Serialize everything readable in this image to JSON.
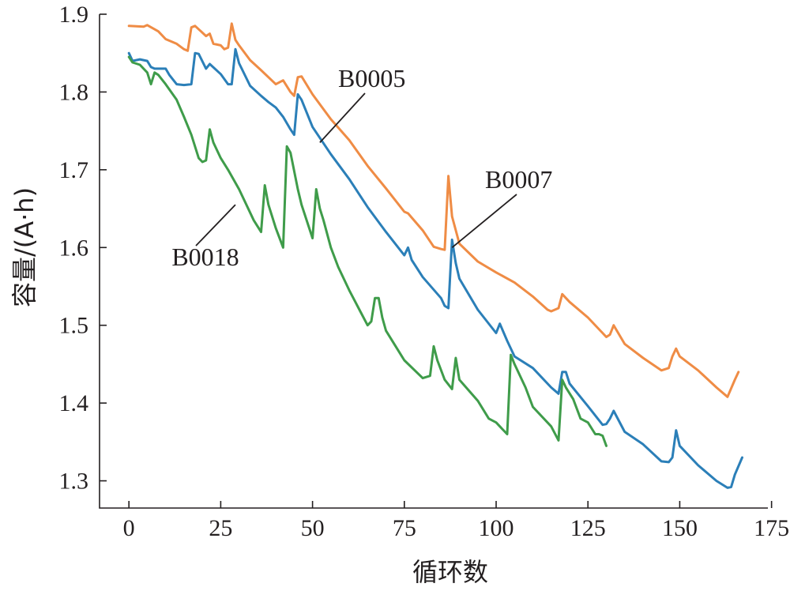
{
  "chart_data": {
    "type": "line",
    "xlabel": "循环数",
    "ylabel": "容量/(A·h)",
    "xlim": [
      -8,
      174
    ],
    "ylim": [
      1.265,
      1.9
    ],
    "xticks": [
      0,
      25,
      50,
      75,
      100,
      125,
      150,
      175
    ],
    "xtick_labels": [
      "0",
      "25",
      "50",
      "75",
      "100",
      "125",
      "150",
      "175"
    ],
    "yticks": [
      1.3,
      1.4,
      1.5,
      1.6,
      1.7,
      1.8,
      1.9
    ],
    "ytick_labels": [
      "1.3",
      "1.4",
      "1.5",
      "1.6",
      "1.7",
      "1.8",
      "1.9"
    ],
    "legend": "inline labels",
    "series": [
      {
        "name": "B0007",
        "color": "#ef8c45",
        "label_anchor": [
          88,
          1.6
        ],
        "x": [
          0,
          4,
          5,
          8,
          10,
          13,
          15,
          16,
          17,
          18,
          21,
          22,
          23,
          25,
          26,
          27,
          28,
          29,
          30,
          33,
          36,
          40,
          42,
          44,
          45,
          46,
          47,
          50,
          55,
          60,
          65,
          70,
          75,
          76,
          80,
          83,
          85,
          86,
          87,
          88,
          90,
          95,
          100,
          105,
          110,
          114,
          115,
          117,
          118,
          120,
          125,
          130,
          131,
          132,
          135,
          140,
          145,
          147,
          148,
          149,
          150,
          155,
          160,
          163,
          165,
          166
        ],
        "values": [
          1.885,
          1.884,
          1.886,
          1.878,
          1.868,
          1.862,
          1.855,
          1.853,
          1.883,
          1.885,
          1.872,
          1.875,
          1.862,
          1.86,
          1.855,
          1.857,
          1.888,
          1.867,
          1.86,
          1.841,
          1.828,
          1.81,
          1.815,
          1.8,
          1.795,
          1.819,
          1.82,
          1.797,
          1.765,
          1.738,
          1.705,
          1.676,
          1.646,
          1.644,
          1.622,
          1.601,
          1.598,
          1.597,
          1.692,
          1.64,
          1.605,
          1.582,
          1.568,
          1.555,
          1.537,
          1.52,
          1.518,
          1.522,
          1.54,
          1.53,
          1.51,
          1.485,
          1.488,
          1.5,
          1.476,
          1.458,
          1.442,
          1.445,
          1.46,
          1.47,
          1.46,
          1.442,
          1.42,
          1.408,
          1.43,
          1.44
        ]
      },
      {
        "name": "B0005",
        "color": "#2b7fb8",
        "label_anchor": [
          52,
          1.735
        ],
        "x": [
          0,
          1,
          3,
          5,
          6,
          7,
          10,
          11,
          13,
          15,
          17,
          18,
          19,
          21,
          22,
          25,
          27,
          28,
          29,
          30,
          33,
          36,
          38,
          40,
          42,
          44,
          45,
          46,
          47,
          50,
          55,
          60,
          65,
          70,
          75,
          76,
          77,
          80,
          85,
          86,
          87,
          88,
          89,
          90,
          95,
          100,
          101,
          103,
          105,
          110,
          115,
          117,
          118,
          119,
          120,
          125,
          129,
          130,
          131,
          132,
          135,
          140,
          145,
          147,
          148,
          149,
          150,
          155,
          160,
          163,
          164,
          165,
          167
        ],
        "values": [
          1.85,
          1.84,
          1.842,
          1.84,
          1.832,
          1.83,
          1.83,
          1.822,
          1.81,
          1.809,
          1.81,
          1.85,
          1.849,
          1.83,
          1.836,
          1.823,
          1.81,
          1.81,
          1.855,
          1.837,
          1.808,
          1.795,
          1.787,
          1.78,
          1.768,
          1.752,
          1.745,
          1.797,
          1.79,
          1.755,
          1.72,
          1.688,
          1.652,
          1.62,
          1.59,
          1.6,
          1.584,
          1.562,
          1.535,
          1.525,
          1.522,
          1.61,
          1.58,
          1.56,
          1.52,
          1.49,
          1.502,
          1.48,
          1.46,
          1.445,
          1.42,
          1.412,
          1.44,
          1.44,
          1.425,
          1.396,
          1.372,
          1.373,
          1.38,
          1.39,
          1.363,
          1.347,
          1.325,
          1.324,
          1.33,
          1.365,
          1.345,
          1.32,
          1.3,
          1.291,
          1.292,
          1.308,
          1.33
        ]
      },
      {
        "name": "B0018",
        "color": "#3f9c4a",
        "label_anchor": [
          29,
          1.655
        ],
        "x": [
          0,
          1,
          3,
          5,
          6,
          7,
          8,
          10,
          13,
          15,
          17,
          19,
          20,
          21,
          22,
          23,
          25,
          27,
          30,
          34,
          36,
          37,
          38,
          40,
          42,
          43,
          44,
          46,
          47,
          50,
          51,
          52,
          53,
          55,
          57,
          60,
          63,
          65,
          66,
          67,
          68,
          69,
          70,
          75,
          80,
          82,
          83,
          84,
          86,
          88,
          89,
          90,
          95,
          98,
          100,
          101,
          103,
          104,
          105,
          108,
          110,
          115,
          117,
          118,
          119,
          121,
          123,
          125,
          127,
          128,
          129,
          130
        ],
        "values": [
          1.845,
          1.838,
          1.835,
          1.825,
          1.81,
          1.825,
          1.822,
          1.81,
          1.79,
          1.768,
          1.745,
          1.715,
          1.71,
          1.712,
          1.752,
          1.735,
          1.715,
          1.7,
          1.675,
          1.635,
          1.62,
          1.68,
          1.655,
          1.625,
          1.6,
          1.73,
          1.722,
          1.675,
          1.655,
          1.612,
          1.675,
          1.65,
          1.635,
          1.6,
          1.575,
          1.545,
          1.518,
          1.5,
          1.505,
          1.535,
          1.535,
          1.51,
          1.493,
          1.455,
          1.432,
          1.435,
          1.473,
          1.455,
          1.43,
          1.418,
          1.458,
          1.43,
          1.403,
          1.38,
          1.375,
          1.37,
          1.36,
          1.462,
          1.45,
          1.42,
          1.395,
          1.37,
          1.352,
          1.43,
          1.42,
          1.405,
          1.38,
          1.375,
          1.36,
          1.36,
          1.358,
          1.345
        ]
      }
    ]
  }
}
